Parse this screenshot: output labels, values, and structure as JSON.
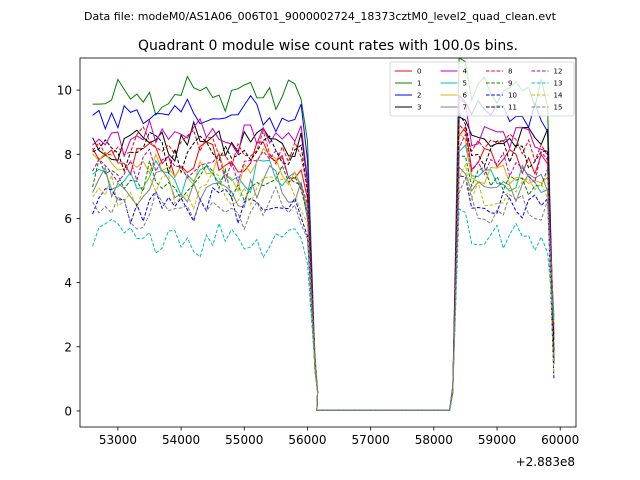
{
  "chart_data": {
    "type": "line",
    "suptitle": "Data file: modeM0/AS1A06_006T01_9000002724_18373cztM0_level2_quad_clean.evt",
    "title": "Quadrant 0 module wise count rates with 100.0s bins.",
    "xlabel": "",
    "ylabel": "",
    "x_offset_label": "+2.883e8",
    "xlim": [
      52400,
      60250
    ],
    "ylim": [
      -0.5,
      11.0
    ],
    "xticks": [
      53000,
      54000,
      55000,
      56000,
      57000,
      58000,
      59000,
      60000
    ],
    "xtick_labels": [
      "53000",
      "54000",
      "55000",
      "56000",
      "57000",
      "58000",
      "59000",
      "60000"
    ],
    "yticks": [
      0,
      2,
      4,
      6,
      8,
      10
    ],
    "ytick_labels": [
      "0",
      "2",
      "4",
      "6",
      "8",
      "10"
    ],
    "legend_position": "top-right",
    "legend_columns": 4,
    "segments": [
      {
        "x_start": 52600,
        "x_end": 56050,
        "step": 100
      },
      {
        "x_start": 58300,
        "x_end": 59850,
        "step": 100
      }
    ],
    "gap": {
      "x": [
        56150,
        56250,
        56350,
        56450,
        56550,
        56650,
        56750,
        56850,
        56950,
        57050,
        57150,
        57250,
        57350,
        57450,
        57550,
        57650,
        57750,
        57850,
        57950,
        58050,
        58150,
        58250
      ],
      "value": 0.02
    },
    "series": [
      {
        "name": "0",
        "color": "#ff0000",
        "dash": "solid",
        "level": 7.8
      },
      {
        "name": "1",
        "color": "#008000",
        "dash": "solid",
        "level": 9.9
      },
      {
        "name": "2",
        "color": "#0000ff",
        "dash": "solid",
        "level": 9.2
      },
      {
        "name": "3",
        "color": "#000000",
        "dash": "solid",
        "level": 8.4
      },
      {
        "name": "4",
        "color": "#bf00bf",
        "dash": "solid",
        "level": 8.5
      },
      {
        "name": "5",
        "color": "#00bfbf",
        "dash": "solid",
        "level": 7.3
      },
      {
        "name": "6",
        "color": "#e0b000",
        "dash": "solid",
        "level": 7.5
      },
      {
        "name": "7",
        "color": "#808080",
        "dash": "solid",
        "level": 7.0
      },
      {
        "name": "8",
        "color": "#ff0000",
        "dash": "dashed",
        "level": 8.2
      },
      {
        "name": "9",
        "color": "#008000",
        "dash": "dashed",
        "level": 7.2
      },
      {
        "name": "10",
        "color": "#0000ff",
        "dash": "dashed",
        "level": 6.4
      },
      {
        "name": "11",
        "color": "#000000",
        "dash": "dashed",
        "level": 8.0
      },
      {
        "name": "12",
        "color": "#bf00bf",
        "dash": "dashed",
        "level": 7.6
      },
      {
        "name": "13",
        "color": "#00bfbf",
        "dash": "dashed",
        "level": 5.4
      },
      {
        "name": "14",
        "color": "#bfbf00",
        "dash": "dashed",
        "level": 6.9
      },
      {
        "name": "15",
        "color": "#808080",
        "dash": "dashed",
        "level": 6.3
      }
    ]
  }
}
